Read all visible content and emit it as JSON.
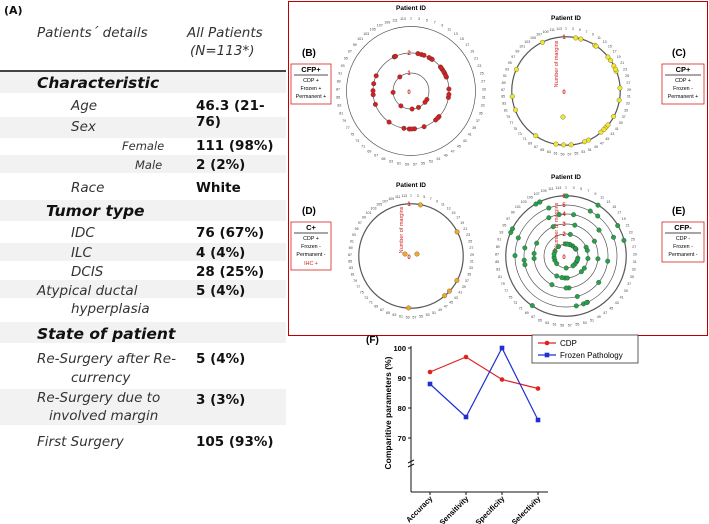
{
  "table": {
    "panel_label": "(A)",
    "header_left": "Patients´ details",
    "header_right_line1": "All Patients",
    "header_right_line2": "(N=113*)",
    "sections": {
      "characteristic": "Characteristic",
      "tumor_type": "Tumor type",
      "state": "State of patient"
    },
    "rows": {
      "age": {
        "label": "Age",
        "value": "46.3 (21-76)"
      },
      "sex": {
        "label": "Sex",
        "value": ""
      },
      "female": {
        "label": "Female",
        "value": "111 (98%)"
      },
      "male": {
        "label": "Male",
        "value": "2 (2%)"
      },
      "race": {
        "label": "Race",
        "value": "White"
      },
      "idc": {
        "label": "IDC",
        "value": "76 (67%)"
      },
      "ilc": {
        "label": "ILC",
        "value": "4 (4%)"
      },
      "dcis": {
        "label": "DCIS",
        "value": "28 (25%)"
      },
      "atypical_line1": "Atypical ductal",
      "atypical_line2": "hyperplasia",
      "atypical_value": "5 (4%)",
      "resurg_recur_line1": "Re-Surgery after Re-",
      "resurg_recur_line2": "currency",
      "resurg_recur_value": "5 (4%)",
      "resurg_margin_line1": "Re-Surgery due to",
      "resurg_margin_line2": "involved margin",
      "resurg_margin_value": "3 (3%)",
      "first_surgery": {
        "label": "First Surgery",
        "value": "105 (93%)"
      }
    }
  },
  "radial": {
    "title": "Patient ID",
    "axis_label": "Number of margins",
    "ring_labels": [
      "0",
      "1",
      "2",
      "3",
      "4",
      "5",
      "6"
    ],
    "patient_ids": [
      "1",
      "3",
      "5",
      "7",
      "9",
      "11",
      "13",
      "15",
      "17",
      "19",
      "21",
      "23",
      "25",
      "27",
      "29",
      "31",
      "33",
      "35",
      "37",
      "39",
      "41",
      "43",
      "45",
      "47",
      "49",
      "51",
      "53",
      "55",
      "57",
      "59",
      "61",
      "63",
      "65",
      "67",
      "69",
      "71",
      "73",
      "75",
      "77",
      "79",
      "81",
      "83",
      "85",
      "87",
      "89",
      "91",
      "93",
      "95",
      "97",
      "99",
      "101",
      "103",
      "105",
      "107",
      "109",
      "111",
      "113"
    ],
    "panels": {
      "B": {
        "letter": "(B)",
        "code": "CFP+",
        "lines": [
          "CDP +",
          "Frozen +",
          "Permanent +"
        ],
        "color": "#d42020",
        "max_margins": 2
      },
      "C": {
        "letter": "(C)",
        "code": "CP+",
        "lines": [
          "CDP +",
          "Frozen -",
          "Permanent +"
        ],
        "color": "#f2e52a",
        "max_margins": 1
      },
      "D": {
        "letter": "(D)",
        "code": "C+",
        "lines": [
          "CDP +",
          "Frozen -",
          "Permanent -",
          "IHC +"
        ],
        "color": "#f0a828",
        "max_margins": 1
      },
      "E": {
        "letter": "(E)",
        "code": "CFP-",
        "lines": [
          "CDP -",
          "Frozen -",
          "Permanent -"
        ],
        "color": "#27a04a",
        "max_margins": 6
      }
    }
  },
  "chart_data": {
    "type": "line",
    "panel_label": "(F)",
    "title": "",
    "xlabel": "",
    "ylabel": "Comparitive parameters (%)",
    "categories": [
      "Accuracy",
      "Sensitivity",
      "Specificity",
      "Selectivity"
    ],
    "series": [
      {
        "name": "CDP",
        "color": "#e02020",
        "marker": "circle",
        "values": [
          92,
          97,
          89.5,
          86.5
        ]
      },
      {
        "name": "Frozen Pathology",
        "color": "#1f2fd0",
        "marker": "square",
        "values": [
          88,
          77,
          100,
          76
        ]
      }
    ],
    "ylim": [
      70,
      100
    ],
    "y_ticks": [
      "70",
      "80",
      "90",
      "100"
    ],
    "y_axis_break": true,
    "legend": "top-right"
  }
}
